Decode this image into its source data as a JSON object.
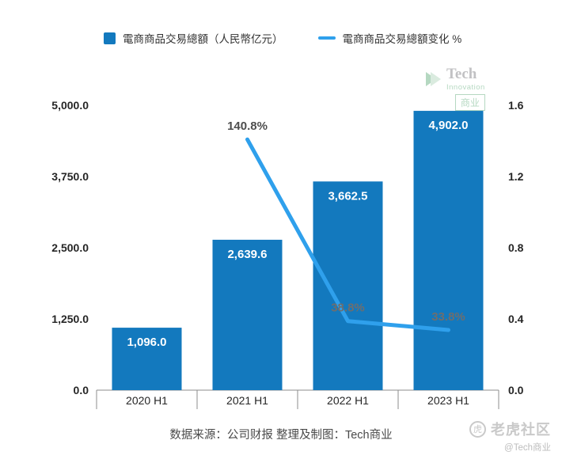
{
  "caption": "数据来源：公司财报 整理及制图：Tech商业",
  "watermarks": {
    "logo": {
      "line1": "Tech",
      "line2": "Innovation",
      "line3": "商业"
    },
    "community": {
      "name": "老虎社区",
      "handle": "@Tech商业"
    }
  },
  "chart_data": {
    "type": "bar+line",
    "title": "",
    "categories": [
      "2020 H1",
      "2021 H1",
      "2022 H1",
      "2023 H1"
    ],
    "series": [
      {
        "name": "電商商品交易總額（人民幣亿元）",
        "type": "bar",
        "axis": "left",
        "values": [
          1096.0,
          2639.6,
          3662.5,
          4902.0
        ],
        "labels": [
          "1,096.0",
          "2,639.6",
          "3,662.5",
          "4,902.0"
        ],
        "color": "#1379BE"
      },
      {
        "name": "電商商品交易總額变化 %",
        "type": "line",
        "axis": "right",
        "values": [
          null,
          1.408,
          0.388,
          0.338
        ],
        "labels": [
          null,
          "140.8%",
          "38.8%",
          "33.8%"
        ],
        "color": "#2FA0EC"
      }
    ],
    "left_axis": {
      "min": 0,
      "max": 5000,
      "ticks": [
        "0.0",
        "1,250.0",
        "2,500.0",
        "3,750.0",
        "5,000.0"
      ]
    },
    "right_axis": {
      "min": 0,
      "max": 1.6,
      "ticks": [
        "0.0",
        "0.4",
        "0.8",
        "1.2",
        "1.6"
      ]
    },
    "legend_position": "top",
    "grid": false
  }
}
